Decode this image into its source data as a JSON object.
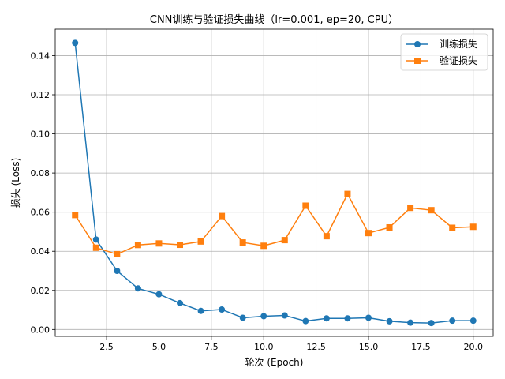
{
  "chart_data": {
    "type": "line",
    "title": "CNN训练与验证损失曲线（lr=0.001, ep=20, CPU）",
    "xlabel": "轮次 (Epoch)",
    "ylabel": "损失 (Loss)",
    "xlim": [
      0.05,
      20.95
    ],
    "ylim": [
      -0.0035,
      0.1535
    ],
    "xticks": [
      2.5,
      5.0,
      7.5,
      10.0,
      12.5,
      15.0,
      17.5,
      20.0
    ],
    "xtick_labels": [
      "2.5",
      "5.0",
      "7.5",
      "10.0",
      "12.5",
      "15.0",
      "17.5",
      "20.0"
    ],
    "yticks": [
      0.0,
      0.02,
      0.04,
      0.06,
      0.08,
      0.1,
      0.12,
      0.14
    ],
    "ytick_labels": [
      "0.00",
      "0.02",
      "0.04",
      "0.06",
      "0.08",
      "0.10",
      "0.12",
      "0.14"
    ],
    "grid": true,
    "legend_position": "top-right",
    "x": [
      1,
      2,
      3,
      4,
      5,
      6,
      7,
      8,
      9,
      10,
      11,
      12,
      13,
      14,
      15,
      16,
      17,
      18,
      19,
      20
    ],
    "series": [
      {
        "name": "训练损失",
        "color": "#1f77b4",
        "marker": "circle",
        "values": [
          0.1465,
          0.046,
          0.03,
          0.021,
          0.018,
          0.0135,
          0.0095,
          0.0102,
          0.006,
          0.0068,
          0.0072,
          0.0043,
          0.0057,
          0.0057,
          0.006,
          0.0042,
          0.0035,
          0.0033,
          0.0045,
          0.0045
        ]
      },
      {
        "name": "验证损失",
        "color": "#ff7f0e",
        "marker": "square",
        "values": [
          0.0585,
          0.0418,
          0.0385,
          0.0432,
          0.044,
          0.0433,
          0.045,
          0.058,
          0.0445,
          0.0428,
          0.0457,
          0.0633,
          0.0477,
          0.0693,
          0.0493,
          0.0522,
          0.0622,
          0.061,
          0.052,
          0.0525
        ]
      }
    ]
  }
}
